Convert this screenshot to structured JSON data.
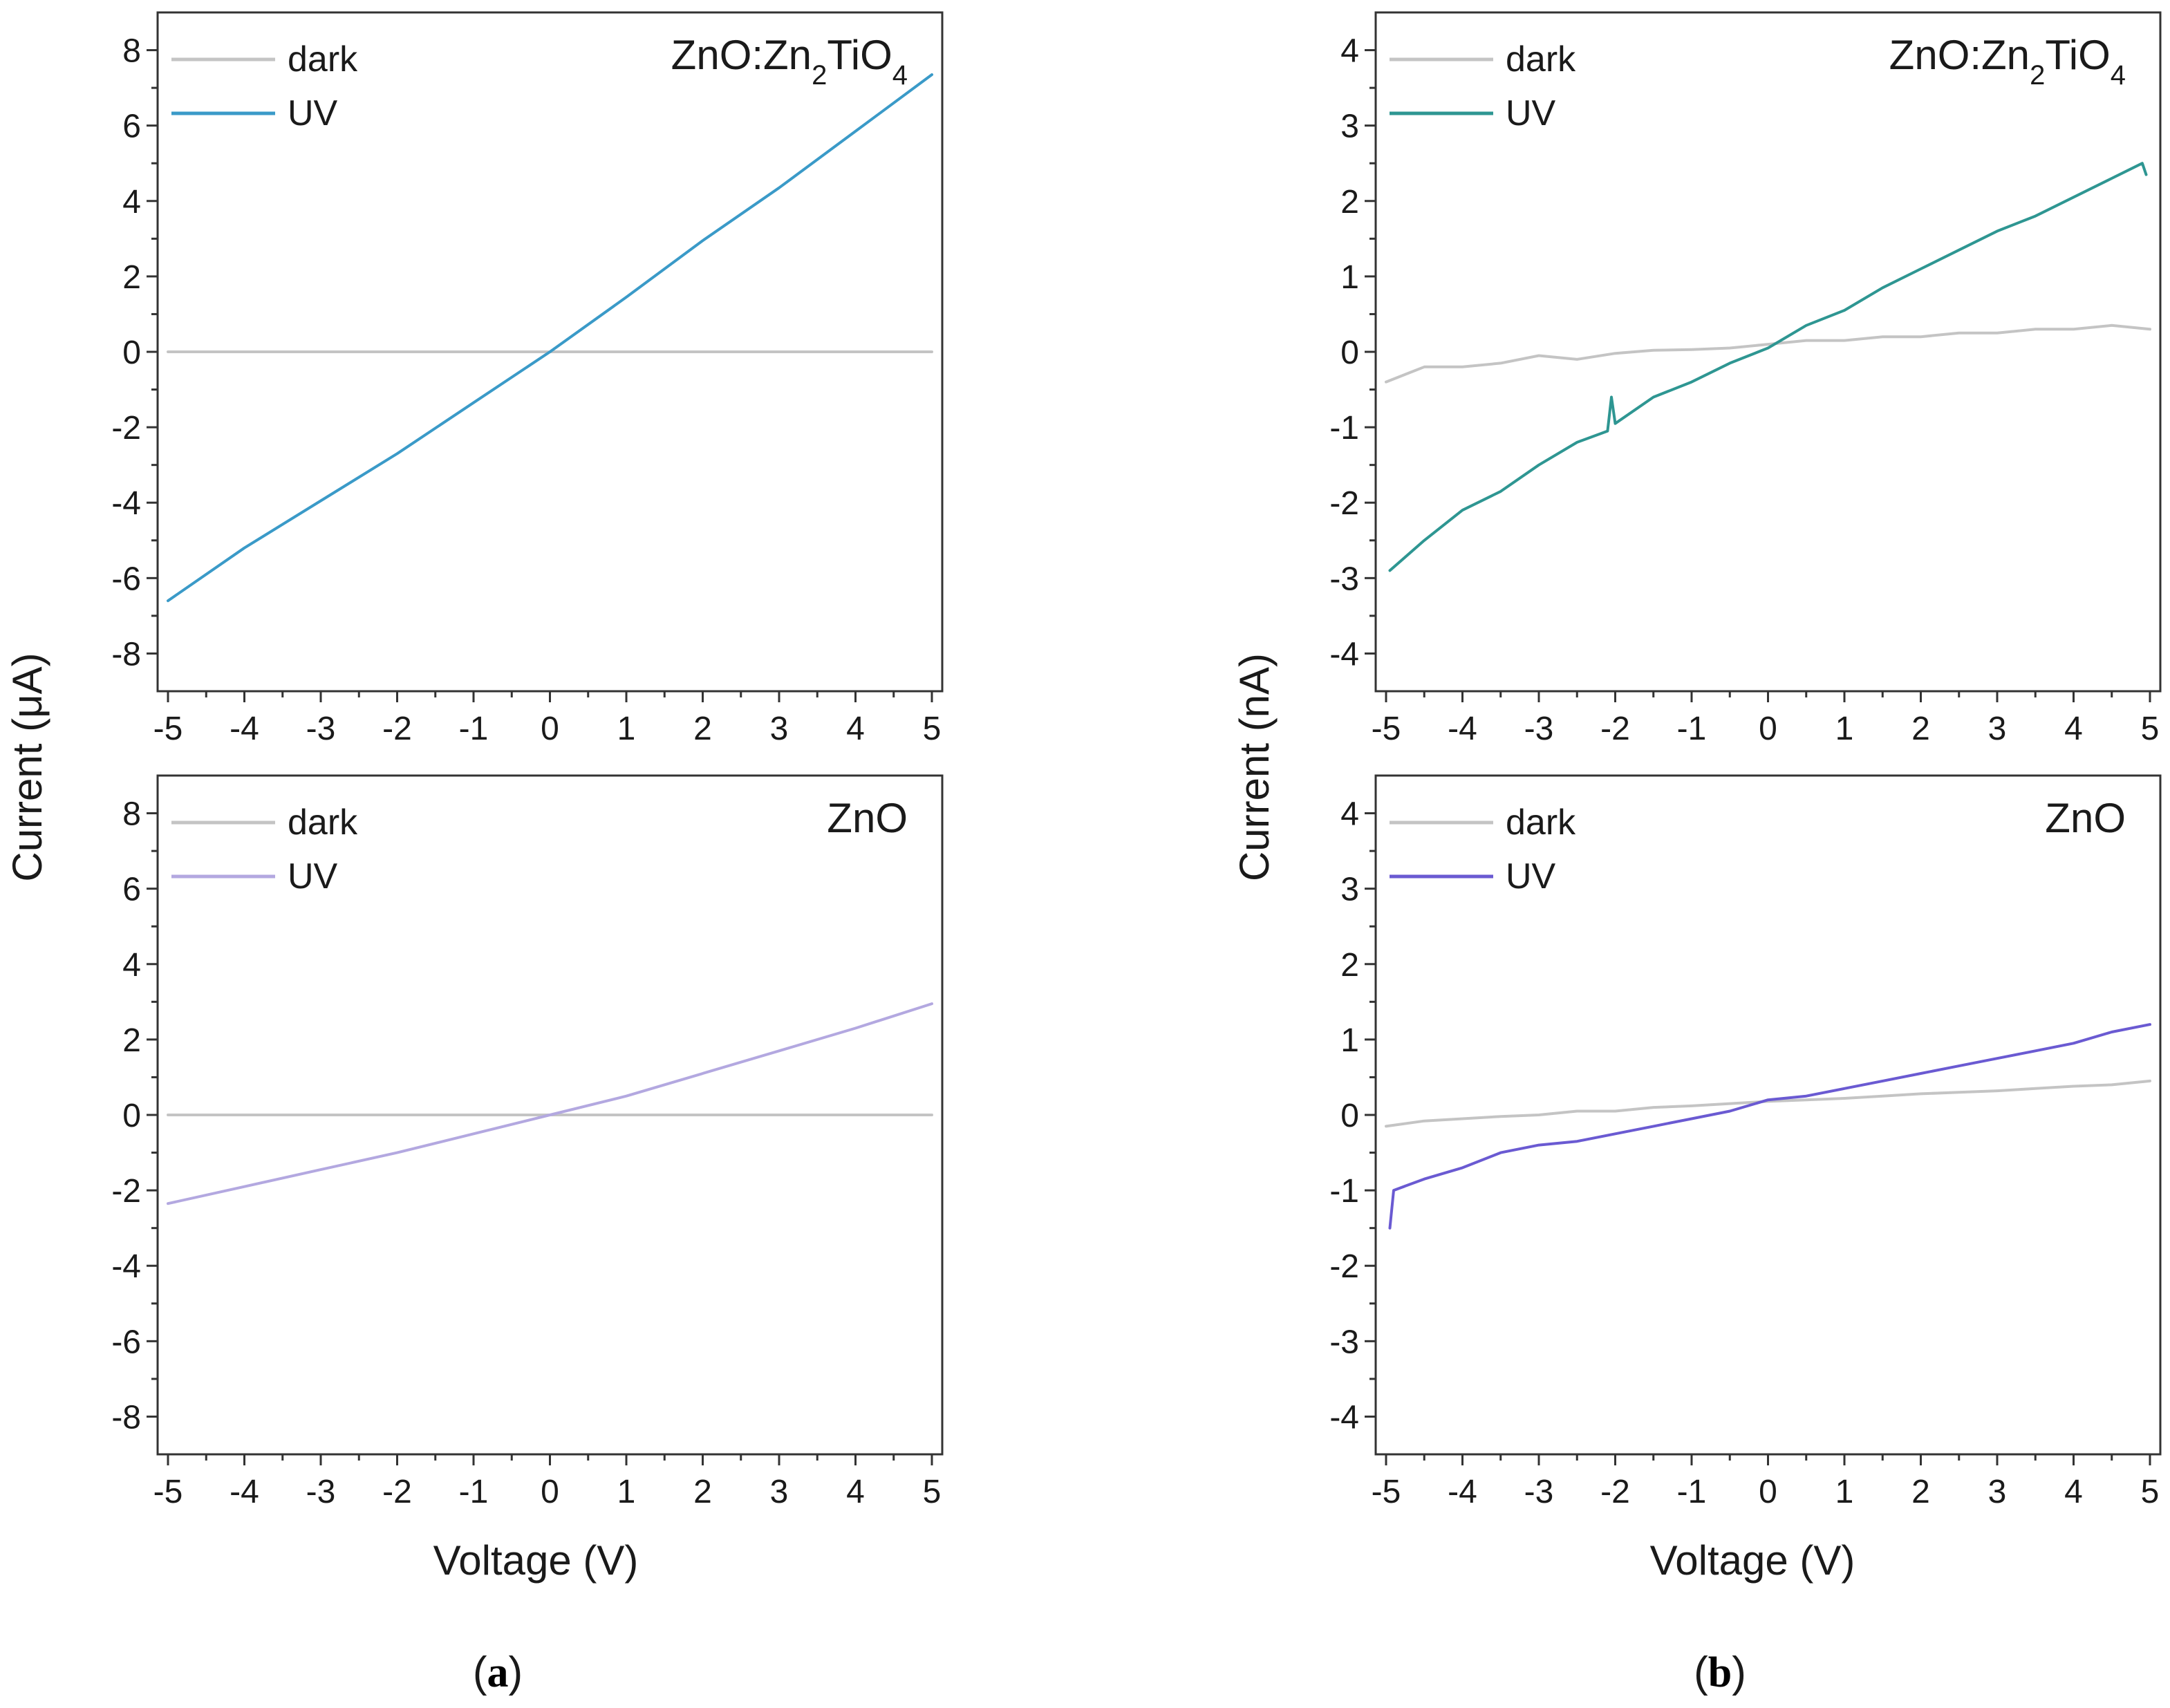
{
  "figure": {
    "panel_a_label_letter": "a",
    "panel_b_label_letter": "b",
    "paren_open": "(",
    "paren_close": ")"
  },
  "colors": {
    "dark": "#c4c4c4",
    "uv_a_top": "#3a9ac8",
    "uv_a_bottom": "#b3a8e0",
    "uv_b_top": "#2e9692",
    "uv_b_bottom": "#6a5ad2",
    "axis": "#333333"
  },
  "chart_data": [
    {
      "id": "a-top",
      "type": "line",
      "annotation": {
        "base": "ZnO:Zn",
        "sub1": "2",
        "mid": "TiO",
        "sub2": "4"
      },
      "ylabel": "Current (μA)",
      "xlabel": "",
      "xlim": [
        -5,
        5
      ],
      "ylim": [
        -9,
        9
      ],
      "xticks": [
        -5,
        -4,
        -3,
        -2,
        -1,
        0,
        1,
        2,
        3,
        4,
        5
      ],
      "yticks": [
        -8,
        -6,
        -4,
        -2,
        0,
        2,
        4,
        6,
        8
      ],
      "legend": [
        "dark",
        "UV"
      ],
      "series": [
        {
          "name": "dark",
          "color_key": "dark",
          "points": [
            [
              -5,
              0
            ],
            [
              5,
              0
            ]
          ]
        },
        {
          "name": "UV",
          "color_key": "uv_a_top",
          "points": [
            [
              -5,
              -6.6
            ],
            [
              -4,
              -5.2
            ],
            [
              -3,
              -3.95
            ],
            [
              -2,
              -2.7
            ],
            [
              -1,
              -1.35
            ],
            [
              0,
              0
            ],
            [
              1,
              1.45
            ],
            [
              2,
              2.95
            ],
            [
              3,
              4.35
            ],
            [
              4,
              5.85
            ],
            [
              5,
              7.35
            ]
          ]
        }
      ]
    },
    {
      "id": "a-bottom",
      "type": "line",
      "annotation": {
        "base": "ZnO"
      },
      "ylabel": "",
      "xlabel": "Voltage (V)",
      "xlim": [
        -5,
        5
      ],
      "ylim": [
        -9,
        9
      ],
      "xticks": [
        -5,
        -4,
        -3,
        -2,
        -1,
        0,
        1,
        2,
        3,
        4,
        5
      ],
      "yticks": [
        -8,
        -6,
        -4,
        -2,
        0,
        2,
        4,
        6,
        8
      ],
      "legend": [
        "dark",
        "UV"
      ],
      "series": [
        {
          "name": "dark",
          "color_key": "dark",
          "points": [
            [
              -5,
              0
            ],
            [
              5,
              0
            ]
          ]
        },
        {
          "name": "UV",
          "color_key": "uv_a_bottom",
          "points": [
            [
              -5,
              -2.35
            ],
            [
              -4,
              -1.9
            ],
            [
              -3,
              -1.45
            ],
            [
              -2,
              -1.0
            ],
            [
              -1,
              -0.5
            ],
            [
              0,
              0
            ],
            [
              1,
              0.5
            ],
            [
              2,
              1.1
            ],
            [
              3,
              1.7
            ],
            [
              4,
              2.3
            ],
            [
              5,
              2.95
            ]
          ]
        }
      ]
    },
    {
      "id": "b-top",
      "type": "line",
      "annotation": {
        "base": "ZnO:Zn",
        "sub1": "2",
        "mid": "TiO",
        "sub2": "4"
      },
      "ylabel": "Current (nA)",
      "xlabel": "",
      "xlim": [
        -5,
        5
      ],
      "ylim": [
        -4.5,
        4.5
      ],
      "xticks": [
        -5,
        -4,
        -3,
        -2,
        -1,
        0,
        1,
        2,
        3,
        4,
        5
      ],
      "yticks": [
        -4,
        -3,
        -2,
        -1,
        0,
        1,
        2,
        3,
        4
      ],
      "legend": [
        "dark",
        "UV"
      ],
      "series": [
        {
          "name": "dark",
          "color_key": "dark",
          "points": [
            [
              -5,
              -0.4
            ],
            [
              -4.5,
              -0.2
            ],
            [
              -4,
              -0.2
            ],
            [
              -3.5,
              -0.15
            ],
            [
              -3,
              -0.05
            ],
            [
              -2.5,
              -0.1
            ],
            [
              -2,
              -0.02
            ],
            [
              -1.5,
              0.02
            ],
            [
              -1,
              0.03
            ],
            [
              -0.5,
              0.05
            ],
            [
              0,
              0.1
            ],
            [
              0.5,
              0.15
            ],
            [
              1,
              0.15
            ],
            [
              1.5,
              0.2
            ],
            [
              2,
              0.2
            ],
            [
              2.5,
              0.25
            ],
            [
              3,
              0.25
            ],
            [
              3.5,
              0.3
            ],
            [
              4,
              0.3
            ],
            [
              4.5,
              0.35
            ],
            [
              5,
              0.3
            ]
          ]
        },
        {
          "name": "UV",
          "color_key": "uv_b_top",
          "points": [
            [
              -4.95,
              -2.9
            ],
            [
              -4.5,
              -2.5
            ],
            [
              -4,
              -2.1
            ],
            [
              -3.5,
              -1.85
            ],
            [
              -3,
              -1.5
            ],
            [
              -2.5,
              -1.2
            ],
            [
              -2.1,
              -1.05
            ],
            [
              -2.05,
              -0.6
            ],
            [
              -2,
              -0.95
            ],
            [
              -1.5,
              -0.6
            ],
            [
              -1,
              -0.4
            ],
            [
              -0.5,
              -0.15
            ],
            [
              0,
              0.05
            ],
            [
              0.5,
              0.35
            ],
            [
              1,
              0.55
            ],
            [
              1.5,
              0.85
            ],
            [
              2,
              1.1
            ],
            [
              2.5,
              1.35
            ],
            [
              3,
              1.6
            ],
            [
              3.5,
              1.8
            ],
            [
              4,
              2.05
            ],
            [
              4.5,
              2.3
            ],
            [
              4.9,
              2.5
            ],
            [
              4.95,
              2.35
            ]
          ]
        }
      ]
    },
    {
      "id": "b-bottom",
      "type": "line",
      "annotation": {
        "base": "ZnO"
      },
      "ylabel": "",
      "xlabel": "Voltage (V)",
      "xlim": [
        -5,
        5
      ],
      "ylim": [
        -4.5,
        4.5
      ],
      "xticks": [
        -5,
        -4,
        -3,
        -2,
        -1,
        0,
        1,
        2,
        3,
        4,
        5
      ],
      "yticks": [
        -4,
        -3,
        -2,
        -1,
        0,
        1,
        2,
        3,
        4
      ],
      "legend": [
        "dark",
        "UV"
      ],
      "series": [
        {
          "name": "dark",
          "color_key": "dark",
          "points": [
            [
              -5,
              -0.15
            ],
            [
              -4.5,
              -0.08
            ],
            [
              -4,
              -0.05
            ],
            [
              -3.5,
              -0.02
            ],
            [
              -3,
              0.0
            ],
            [
              -2.5,
              0.05
            ],
            [
              -2,
              0.05
            ],
            [
              -1.5,
              0.1
            ],
            [
              -1,
              0.12
            ],
            [
              -0.5,
              0.15
            ],
            [
              0,
              0.18
            ],
            [
              0.5,
              0.2
            ],
            [
              1,
              0.22
            ],
            [
              1.5,
              0.25
            ],
            [
              2,
              0.28
            ],
            [
              2.5,
              0.3
            ],
            [
              3,
              0.32
            ],
            [
              3.5,
              0.35
            ],
            [
              4,
              0.38
            ],
            [
              4.5,
              0.4
            ],
            [
              5,
              0.45
            ]
          ]
        },
        {
          "name": "UV",
          "color_key": "uv_b_bottom",
          "points": [
            [
              -4.95,
              -1.5
            ],
            [
              -4.9,
              -1.0
            ],
            [
              -4.5,
              -0.85
            ],
            [
              -4,
              -0.7
            ],
            [
              -3.5,
              -0.5
            ],
            [
              -3,
              -0.4
            ],
            [
              -2.5,
              -0.35
            ],
            [
              -2,
              -0.25
            ],
            [
              -1.5,
              -0.15
            ],
            [
              -1,
              -0.05
            ],
            [
              -0.5,
              0.05
            ],
            [
              0,
              0.2
            ],
            [
              0.5,
              0.25
            ],
            [
              1,
              0.35
            ],
            [
              1.5,
              0.45
            ],
            [
              2,
              0.55
            ],
            [
              2.5,
              0.65
            ],
            [
              3,
              0.75
            ],
            [
              3.5,
              0.85
            ],
            [
              4,
              0.95
            ],
            [
              4.5,
              1.1
            ],
            [
              5,
              1.2
            ]
          ]
        }
      ]
    }
  ]
}
